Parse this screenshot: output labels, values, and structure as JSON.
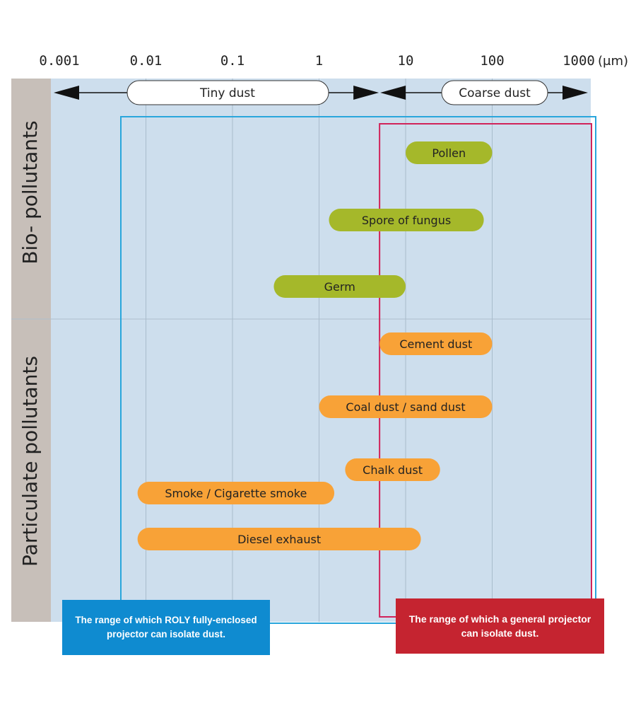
{
  "chart_data": {
    "type": "range-bar",
    "x_scale": "log",
    "x_ticks": [
      "0.001",
      "0.01",
      "0.1",
      "1",
      "10",
      "100",
      "1000"
    ],
    "x_unit": "(μm)",
    "xlim": [
      0.001,
      1000
    ],
    "dust_ranges": [
      {
        "label": "Tiny dust",
        "from": 0.001,
        "to": 5
      },
      {
        "label": "Coarse dust",
        "from": 5,
        "to": 1000
      }
    ],
    "groups": [
      {
        "label": "Bio- pollutants",
        "color": "#a5b82a"
      },
      {
        "label": "Particulate pollutants",
        "color": "#f8a237"
      }
    ],
    "bars": [
      {
        "label": "Pollen",
        "group": 0,
        "from": 10,
        "to": 100
      },
      {
        "label": "Spore of fungus",
        "group": 0,
        "from": 1.3,
        "to": 80
      },
      {
        "label": "Germ",
        "group": 0,
        "from": 0.3,
        "to": 10
      },
      {
        "label": "Cement dust",
        "group": 1,
        "from": 5,
        "to": 100
      },
      {
        "label": "Coal dust / sand dust",
        "group": 1,
        "from": 1,
        "to": 100
      },
      {
        "label": "Chalk dust",
        "group": 1,
        "from": 2,
        "to": 25
      },
      {
        "label": "Smoke / Cigarette smoke",
        "group": 1,
        "from": 0.008,
        "to": 1.5
      },
      {
        "label": "Diesel exhaust",
        "group": 1,
        "from": 0.008,
        "to": 15
      }
    ],
    "isolation_ranges": [
      {
        "label": "The range of which ROLY fully-enclosed projector can isolate dust.",
        "from": 0.005,
        "to": 1000,
        "color": "#29a6dc"
      },
      {
        "label": "The range of which a general projector can isolate dust.",
        "from": 5,
        "to": 1000,
        "color": "#d1235a"
      }
    ],
    "grid": true
  },
  "notes": {
    "roly": "The range of which ROLY fully-enclosed projector can isolate dust.",
    "general": "The range of which a general projector can isolate dust."
  }
}
